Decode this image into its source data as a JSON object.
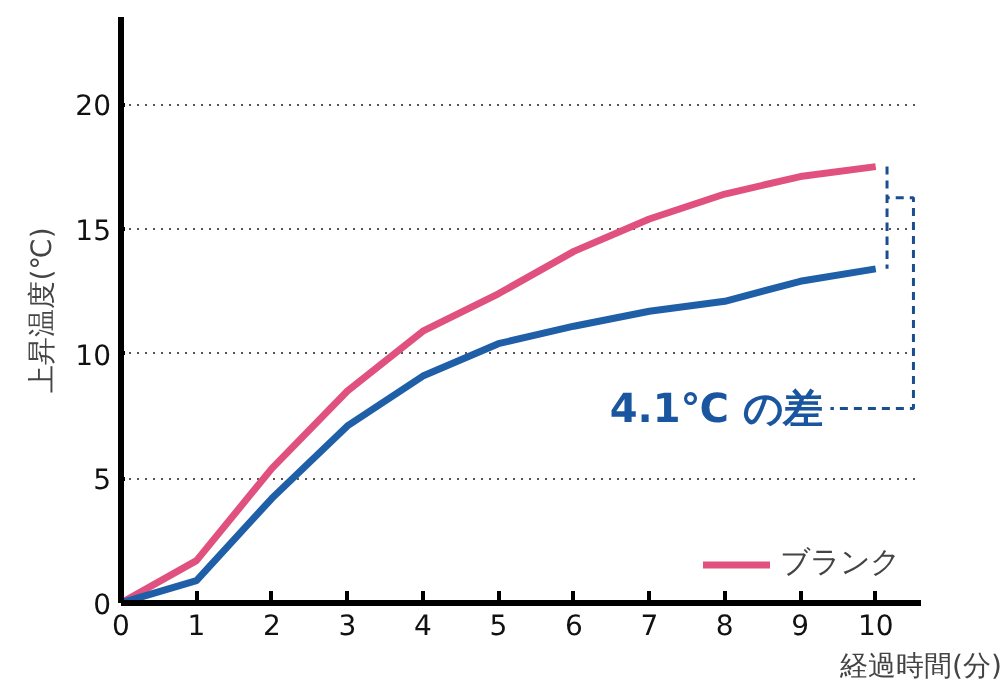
{
  "chart_data": {
    "type": "line",
    "xlabel": "経過時間(分)",
    "ylabel": "上昇温度(℃)",
    "x": [
      0,
      1,
      2,
      3,
      4,
      5,
      6,
      7,
      8,
      9,
      10
    ],
    "series": [
      {
        "name": "ブランク",
        "color": "#e0517f",
        "values": [
          0,
          1.7,
          5.4,
          8.5,
          10.9,
          12.4,
          14.1,
          15.4,
          16.4,
          17.1,
          17.5
        ]
      },
      {
        "color": "#1f5fa8",
        "values": [
          0,
          0.9,
          4.2,
          7.1,
          9.1,
          10.4,
          11.1,
          11.7,
          12.1,
          12.9,
          13.4
        ]
      }
    ],
    "xlim": [
      0,
      10.6
    ],
    "ylim": [
      0,
      23.5
    ],
    "xticks": [
      0,
      1,
      2,
      3,
      4,
      5,
      6,
      7,
      8,
      9,
      10
    ],
    "yticks": [
      0,
      5,
      10,
      15,
      20
    ],
    "grid": "y",
    "legend": "bottom right",
    "marker": "none",
    "line_style": "solid",
    "annotations": [
      "4.1℃ の差"
    ]
  }
}
